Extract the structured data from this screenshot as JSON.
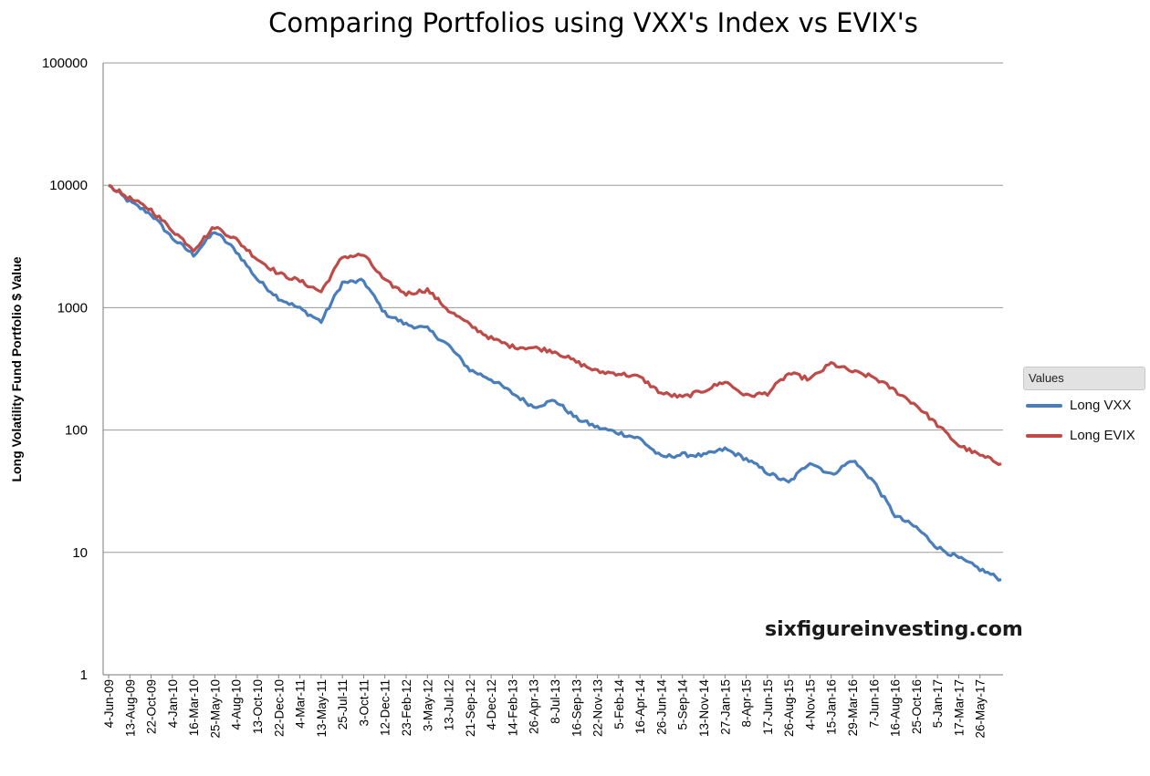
{
  "chart_data": {
    "type": "line",
    "title": "Comparing Portfolios using VXX's Index vs EVIX's",
    "ylabel": "Long Volatility Fund Portfolio $ Value",
    "xlabel": "",
    "yscale": "log",
    "ylim": [
      1,
      100000
    ],
    "y_ticks": [
      "1",
      "10",
      "100",
      "1000",
      "10000",
      "100000"
    ],
    "x_tick_labels": [
      "4-Jun-09",
      "13-Aug-09",
      "22-Oct-09",
      "4-Jan-10",
      "16-Mar-10",
      "25-May-10",
      "4-Aug-10",
      "13-Oct-10",
      "22-Dec-10",
      "4-Mar-11",
      "13-May-11",
      "25-Jul-11",
      "3-Oct-11",
      "12-Dec-11",
      "23-Feb-12",
      "3-May-12",
      "13-Jul-12",
      "21-Sep-12",
      "4-Dec-12",
      "14-Feb-13",
      "26-Apr-13",
      "8-Jul-13",
      "16-Sep-13",
      "22-Nov-13",
      "5-Feb-14",
      "16-Apr-14",
      "26-Jun-14",
      "5-Sep-14",
      "13-Nov-14",
      "27-Jan-15",
      "8-Apr-15",
      "17-Jun-15",
      "26-Aug-15",
      "4-Nov-15",
      "15-Jan-16",
      "29-Mar-16",
      "7-Jun-16",
      "16-Aug-16",
      "25-Oct-16",
      "5-Jan-17",
      "17-Mar-17",
      "26-May-17"
    ],
    "grid": true,
    "legend_position": "right",
    "legend_title": "Values",
    "x": [
      "4-Jun-09",
      "13-Aug-09",
      "22-Oct-09",
      "4-Jan-10",
      "16-Mar-10",
      "25-May-10",
      "4-Aug-10",
      "13-Oct-10",
      "22-Dec-10",
      "4-Mar-11",
      "13-May-11",
      "25-Jul-11",
      "3-Oct-11",
      "12-Dec-11",
      "23-Feb-12",
      "3-May-12",
      "13-Jul-12",
      "21-Sep-12",
      "4-Dec-12",
      "14-Feb-13",
      "26-Apr-13",
      "8-Jul-13",
      "16-Sep-13",
      "22-Nov-13",
      "5-Feb-14",
      "16-Apr-14",
      "26-Jun-14",
      "5-Sep-14",
      "13-Nov-14",
      "27-Jan-15",
      "8-Apr-15",
      "17-Jun-15",
      "26-Aug-15",
      "4-Nov-15",
      "15-Jan-16",
      "29-Mar-16",
      "7-Jun-16",
      "16-Aug-16",
      "25-Oct-16",
      "5-Jan-17",
      "17-Mar-17",
      "26-May-17",
      "24-Jul-17"
    ],
    "series": [
      {
        "name": "Long VXX",
        "color": "#4a7ebb",
        "values": [
          10000,
          7300,
          5800,
          3700,
          2700,
          4200,
          2900,
          1700,
          1200,
          980,
          770,
          1600,
          1650,
          900,
          730,
          670,
          490,
          310,
          260,
          200,
          155,
          175,
          125,
          105,
          95,
          85,
          60,
          63,
          62,
          70,
          58,
          45,
          37,
          55,
          43,
          57,
          38,
          20,
          16,
          11,
          9,
          7.3,
          6
        ]
      },
      {
        "name": "Long EVIX",
        "color": "#be4b48",
        "values": [
          10000,
          7800,
          6300,
          4300,
          3000,
          4600,
          3600,
          2500,
          1900,
          1650,
          1350,
          2600,
          2700,
          1650,
          1300,
          1400,
          950,
          720,
          560,
          480,
          470,
          440,
          360,
          300,
          290,
          270,
          200,
          185,
          210,
          250,
          190,
          200,
          290,
          260,
          350,
          300,
          270,
          210,
          160,
          110,
          75,
          62,
          53
        ]
      }
    ]
  },
  "watermark": "sixfigureinvesting.com"
}
